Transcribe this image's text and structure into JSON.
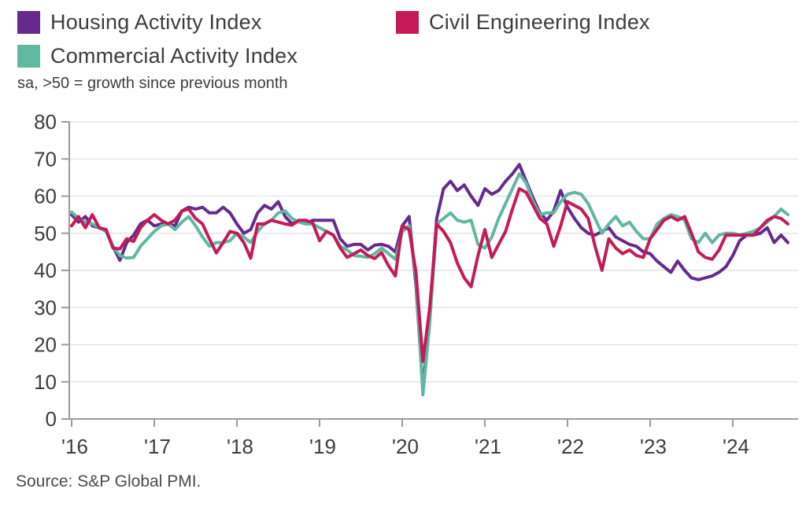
{
  "legend": [
    {
      "label": "Housing Activity Index",
      "color": "#662a8c"
    },
    {
      "label": "Civil Engineering Index",
      "color": "#c41a58"
    },
    {
      "label": "Commercial Activity Index",
      "color": "#5fb8a2"
    }
  ],
  "subtitle": "sa, >50 = growth since previous month",
  "source": "Source: S&P Global PMI.",
  "chart_data": {
    "type": "line",
    "title": "",
    "xlabel": "",
    "ylabel": "",
    "x_start": "2016-01",
    "x_end": "2024-09",
    "frequency": "monthly",
    "x_tick_labels": [
      "'16",
      "'17",
      "'18",
      "'19",
      "'20",
      "'21",
      "'22",
      "'23",
      "'24"
    ],
    "x_tick_months": [
      0,
      12,
      24,
      36,
      48,
      60,
      72,
      84,
      96
    ],
    "y_ticks": [
      0,
      10,
      20,
      30,
      40,
      50,
      60,
      70,
      80
    ],
    "ylim": [
      0,
      80
    ],
    "grid": "horizontal",
    "legend_position": "top",
    "grid_color": "#e4e4e4",
    "axis_color": "#9b9b9b",
    "tick_text_color": "#3d3d3d",
    "series": [
      {
        "name": "Housing Activity Index",
        "color": "#662a8c",
        "values": [
          55.0,
          53.0,
          54.5,
          52.0,
          51.5,
          50.5,
          46.5,
          42.7,
          47.5,
          49.5,
          52.5,
          53.5,
          52.0,
          52.5,
          52.5,
          52.0,
          56.0,
          57.0,
          56.5,
          57.0,
          55.5,
          55.5,
          57.0,
          55.5,
          52.5,
          50.0,
          51.0,
          55.5,
          57.5,
          56.5,
          58.5,
          54.5,
          52.5,
          53.5,
          52.5,
          53.5,
          53.5,
          53.5,
          53.5,
          48.5,
          46.5,
          47.0,
          47.0,
          45.5,
          46.8,
          47.0,
          46.5,
          45.0,
          52.0,
          54.5,
          36.0,
          7.8,
          28.0,
          54.0,
          62.0,
          64.0,
          61.5,
          63.0,
          60.0,
          57.5,
          62.0,
          60.5,
          61.5,
          64.0,
          66.0,
          68.5,
          64.0,
          59.5,
          55.5,
          53.5,
          56.0,
          61.5,
          57.0,
          54.0,
          51.5,
          50.0,
          49.5,
          50.5,
          51.5,
          49.0,
          48.0,
          47.0,
          46.5,
          45.0,
          44.5,
          42.5,
          41.0,
          39.5,
          42.5,
          40.0,
          38.0,
          37.5,
          38.0,
          38.5,
          39.5,
          41.0,
          44.0,
          48.0,
          49.5,
          49.5,
          50.0,
          51.5,
          47.5,
          49.5,
          47.5
        ]
      },
      {
        "name": "Commercial Activity Index",
        "color": "#5fb8a2",
        "values": [
          55.7,
          54.0,
          53.0,
          52.5,
          51.5,
          50.5,
          46.5,
          44.0,
          43.3,
          43.5,
          46.5,
          48.5,
          50.5,
          52.0,
          52.5,
          51.0,
          53.0,
          54.5,
          52.0,
          49.0,
          46.5,
          47.5,
          47.5,
          48.0,
          50.0,
          49.0,
          47.5,
          50.5,
          52.5,
          53.5,
          55.5,
          56.0,
          54.0,
          53.0,
          52.5,
          52.5,
          51.5,
          50.5,
          49.5,
          46.5,
          45.5,
          44.0,
          43.8,
          43.5,
          44.5,
          46.0,
          44.5,
          43.0,
          50.5,
          52.0,
          38.0,
          6.5,
          26.0,
          52.5,
          54.0,
          55.5,
          53.5,
          53.0,
          53.5,
          47.0,
          46.0,
          49.0,
          54.0,
          58.0,
          62.0,
          66.0,
          63.5,
          58.5,
          55.0,
          55.5,
          55.5,
          58.5,
          60.5,
          61.0,
          60.5,
          58.0,
          54.0,
          50.0,
          52.5,
          54.5,
          52.0,
          53.0,
          50.5,
          48.5,
          48.5,
          52.5,
          54.0,
          55.0,
          54.5,
          53.5,
          48.5,
          47.5,
          50.0,
          47.5,
          49.5,
          50.0,
          50.0,
          49.5,
          50.0,
          50.5,
          51.5,
          53.0,
          54.5,
          56.5,
          55.0
        ]
      },
      {
        "name": "Civil Engineering Index",
        "color": "#c41a58",
        "values": [
          52.0,
          54.5,
          51.5,
          55.0,
          51.5,
          51.0,
          46.0,
          45.8,
          48.5,
          47.8,
          51.5,
          53.5,
          55.0,
          53.5,
          52.5,
          53.5,
          56.0,
          56.5,
          54.0,
          52.5,
          48.5,
          44.7,
          47.5,
          50.5,
          50.0,
          47.5,
          43.3,
          52.5,
          52.5,
          53.5,
          53.0,
          52.5,
          52.2,
          53.5,
          53.5,
          52.8,
          48.0,
          50.5,
          49.5,
          46.0,
          43.5,
          44.5,
          45.5,
          44.0,
          43.2,
          44.8,
          41.3,
          38.5,
          52.0,
          51.0,
          39.5,
          15.5,
          30.0,
          52.5,
          50.5,
          47.5,
          42.0,
          38.0,
          35.6,
          44.0,
          51.0,
          43.5,
          47.0,
          50.5,
          56.5,
          62.0,
          61.0,
          57.5,
          54.0,
          52.5,
          46.5,
          52.0,
          58.5,
          57.5,
          56.5,
          54.0,
          46.5,
          40.0,
          48.5,
          46.0,
          44.5,
          45.5,
          44.0,
          43.5,
          48.5,
          51.0,
          53.5,
          54.5,
          53.5,
          54.5,
          50.0,
          45.0,
          43.5,
          43.0,
          45.5,
          49.5,
          49.5,
          49.5,
          49.5,
          49.5,
          51.5,
          53.5,
          54.5,
          54.0,
          52.5
        ]
      }
    ]
  }
}
